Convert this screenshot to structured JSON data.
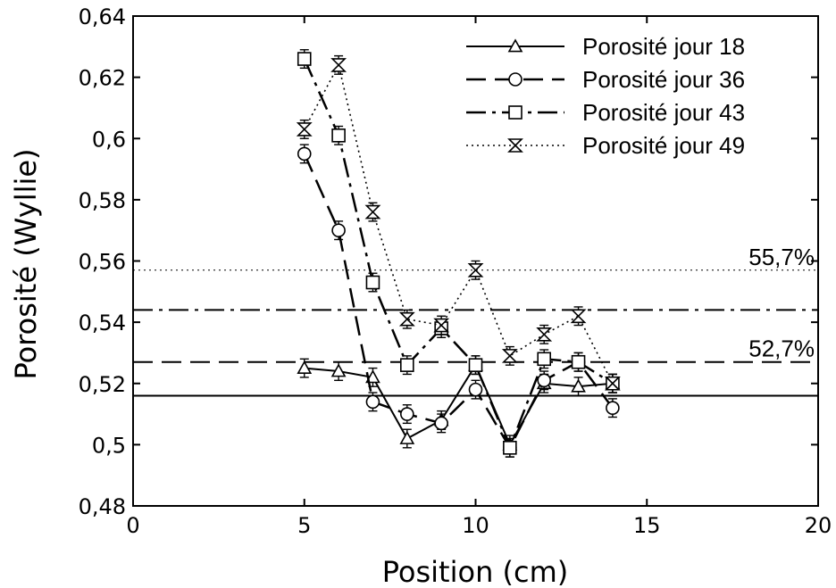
{
  "chart_data": {
    "type": "line",
    "title": "",
    "xlabel": "Position (cm)",
    "ylabel": "Porosité (Wyllie)",
    "xlim": [
      0,
      20
    ],
    "ylim": [
      0.48,
      0.64
    ],
    "xticks": [
      "0",
      "5",
      "10",
      "15",
      "20"
    ],
    "yticks": [
      "0,48",
      "0,5",
      "0,52",
      "0,54",
      "0,56",
      "0,58",
      "0,6",
      "0,62",
      "0,64"
    ],
    "grid": false,
    "legend_position": "top-right",
    "series": [
      {
        "name": "Porosité jour 18",
        "line_style": "solid",
        "marker": "triangle",
        "x": [
          5,
          6,
          7,
          8,
          9,
          10,
          11,
          12,
          13,
          14
        ],
        "y": [
          0.525,
          0.524,
          0.522,
          0.502,
          0.508,
          0.526,
          0.5,
          0.52,
          0.519,
          0.52
        ],
        "reference_line": 0.516
      },
      {
        "name": "Porosité jour 36",
        "line_style": "dashed",
        "marker": "circle",
        "x": [
          5,
          6,
          7,
          8,
          9,
          10,
          11,
          12,
          13,
          14
        ],
        "y": [
          0.595,
          0.57,
          0.514,
          0.51,
          0.507,
          0.518,
          0.499,
          0.521,
          0.527,
          0.512
        ],
        "reference_line": 0.527
      },
      {
        "name": "Porosité jour 43",
        "line_style": "dashdot",
        "marker": "square",
        "x": [
          5,
          6,
          7,
          8,
          9,
          10,
          11,
          12,
          13,
          14
        ],
        "y": [
          0.626,
          0.601,
          0.553,
          0.526,
          0.538,
          0.526,
          0.499,
          0.528,
          0.527,
          0.52
        ],
        "reference_line": 0.544
      },
      {
        "name": "Porosité jour 49",
        "line_style": "dotted",
        "marker": "hourglass",
        "x": [
          5,
          6,
          7,
          8,
          9,
          10,
          11,
          12,
          13,
          14
        ],
        "y": [
          0.603,
          0.624,
          0.576,
          0.541,
          0.539,
          0.557,
          0.529,
          0.536,
          0.542,
          0.52
        ],
        "reference_line": 0.557
      }
    ],
    "annotations": [
      {
        "text": "55,7%",
        "at_y": 0.557
      },
      {
        "text": "52,7%",
        "at_y": 0.527
      }
    ],
    "error_bar": 0.003
  }
}
